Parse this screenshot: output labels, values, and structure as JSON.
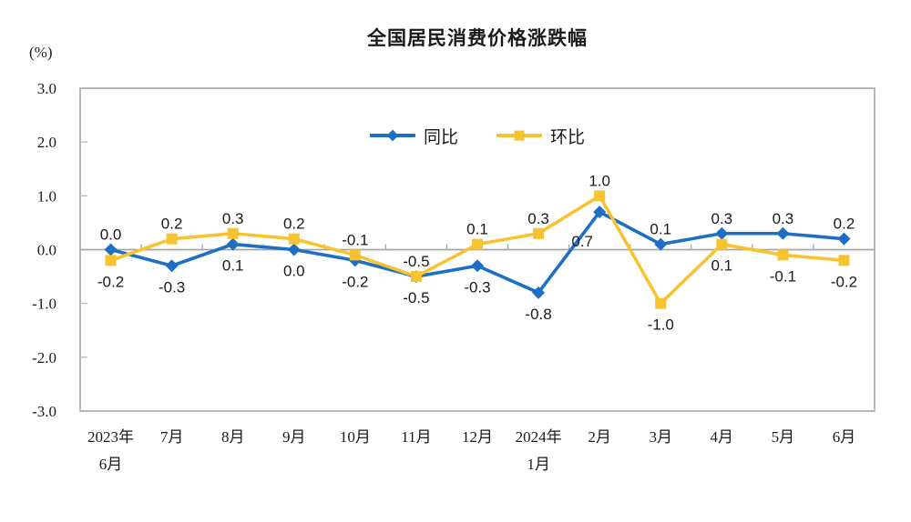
{
  "chart_data": {
    "type": "line",
    "title": "全国居民消费价格涨跌幅",
    "unit": "(%)",
    "categories": [
      "2023年\n6月",
      "7月",
      "8月",
      "9月",
      "10月",
      "11月",
      "12月",
      "2024年\n1月",
      "2月",
      "3月",
      "4月",
      "5月",
      "6月"
    ],
    "series": [
      {
        "name": "同比",
        "color": "#1E6FC3",
        "marker": "diamond",
        "values": [
          0.0,
          -0.3,
          0.1,
          0.0,
          -0.2,
          -0.5,
          -0.3,
          -0.8,
          0.7,
          0.1,
          0.3,
          0.3,
          0.2
        ]
      },
      {
        "name": "环比",
        "color": "#F8C331",
        "marker": "square",
        "values": [
          -0.2,
          0.2,
          0.3,
          0.2,
          -0.1,
          -0.5,
          0.1,
          0.3,
          1.0,
          -1.0,
          0.1,
          -0.1,
          -0.2
        ]
      }
    ],
    "y_axis": {
      "min": -3.0,
      "max": 3.0,
      "step": 1.0,
      "tick_labels": [
        "3.0",
        "2.0",
        "1.0",
        "0.0",
        "-1.0",
        "-2.0",
        "-3.0"
      ]
    },
    "data_labels": true,
    "legend_position": "top-center",
    "colors": {
      "axis_line": "#A6A6A6",
      "tick": "#BFBFBF",
      "text": "#1a1a1a"
    }
  }
}
